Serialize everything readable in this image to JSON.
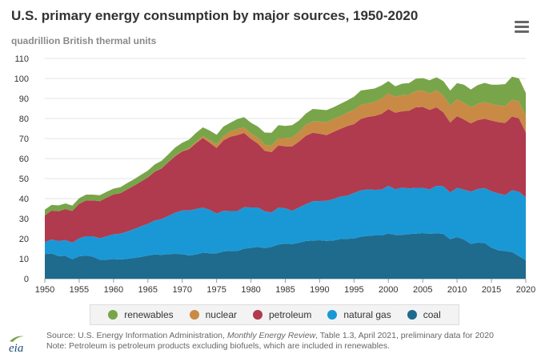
{
  "header": {
    "title": "U.S. primary energy consumption by major sources, 1950-2020",
    "subtitle": "quadrillion British thermal units"
  },
  "toolbar": {
    "menu_icon": "hamburger-menu-icon"
  },
  "legend": [
    {
      "label": "renewables",
      "color": "#78a54a"
    },
    {
      "label": "nuclear",
      "color": "#c98a45"
    },
    {
      "label": "petroleum",
      "color": "#b03a4e"
    },
    {
      "label": "natural gas",
      "color": "#1a98d5"
    },
    {
      "label": "coal",
      "color": "#1e6b8e"
    }
  ],
  "footer": {
    "source_prefix": "Source: U.S. Energy Information Administration, ",
    "source_italic": "Monthly Energy Review",
    "source_suffix": ", Table 1.3, April 2021, preliminary data for 2020",
    "note": "Note: Petroleum is petroleum products excluding biofuels, which are included in renewables.",
    "logo_text": "eia"
  },
  "chart_data": {
    "type": "area",
    "stacked": true,
    "title": "U.S. primary energy consumption by major sources, 1950-2020",
    "ylabel": "quadrillion British thermal units",
    "ylim": [
      0,
      110
    ],
    "yticks": [
      0,
      10,
      20,
      30,
      40,
      50,
      60,
      70,
      80,
      90,
      100,
      110
    ],
    "xticks": [
      1950,
      1955,
      1960,
      1965,
      1970,
      1975,
      1980,
      1985,
      1990,
      1995,
      2000,
      2005,
      2010,
      2015,
      2020
    ],
    "x": [
      1950,
      1951,
      1952,
      1953,
      1954,
      1955,
      1956,
      1957,
      1958,
      1959,
      1960,
      1961,
      1962,
      1963,
      1964,
      1965,
      1966,
      1967,
      1968,
      1969,
      1970,
      1971,
      1972,
      1973,
      1974,
      1975,
      1976,
      1977,
      1978,
      1979,
      1980,
      1981,
      1982,
      1983,
      1984,
      1985,
      1986,
      1987,
      1988,
      1989,
      1990,
      1991,
      1992,
      1993,
      1994,
      1995,
      1996,
      1997,
      1998,
      1999,
      2000,
      2001,
      2002,
      2003,
      2004,
      2005,
      2006,
      2007,
      2008,
      2009,
      2010,
      2011,
      2012,
      2013,
      2014,
      2015,
      2016,
      2017,
      2018,
      2019,
      2020
    ],
    "grid": true,
    "legend_position": "bottom",
    "series": [
      {
        "name": "coal",
        "color": "#1e6b8e",
        "values": [
          12.3,
          12.6,
          11.3,
          11.4,
          9.7,
          11.2,
          11.6,
          11.0,
          9.5,
          9.5,
          9.8,
          9.6,
          9.9,
          10.4,
          10.9,
          11.6,
          12.1,
          11.9,
          12.3,
          12.4,
          12.3,
          11.6,
          12.1,
          13.0,
          12.7,
          12.7,
          13.6,
          13.9,
          13.8,
          15.0,
          15.4,
          15.9,
          15.3,
          15.9,
          17.1,
          17.5,
          17.3,
          18.0,
          18.8,
          19.1,
          19.2,
          18.9,
          19.1,
          19.8,
          19.9,
          20.1,
          21.0,
          21.4,
          21.6,
          21.6,
          22.6,
          21.9,
          21.9,
          22.3,
          22.5,
          22.8,
          22.4,
          22.7,
          22.4,
          19.7,
          20.8,
          19.6,
          17.4,
          18.0,
          17.9,
          15.5,
          14.2,
          13.8,
          13.3,
          11.3,
          9.2
        ]
      },
      {
        "name": "natural gas",
        "color": "#1a98d5",
        "values": [
          6.0,
          7.0,
          7.5,
          7.9,
          8.3,
          9.0,
          9.6,
          10.2,
          10.7,
          11.7,
          12.4,
          12.9,
          13.7,
          14.4,
          15.3,
          15.8,
          17.0,
          17.9,
          19.1,
          20.6,
          21.8,
          22.5,
          22.7,
          22.5,
          21.7,
          19.9,
          20.3,
          19.9,
          20.0,
          20.7,
          20.2,
          19.7,
          18.4,
          17.2,
          18.4,
          17.7,
          16.6,
          17.6,
          18.4,
          19.6,
          19.6,
          20.0,
          20.7,
          21.2,
          21.6,
          22.7,
          23.1,
          23.2,
          22.8,
          22.9,
          23.8,
          22.8,
          23.6,
          22.8,
          22.9,
          22.6,
          22.2,
          23.7,
          23.8,
          23.4,
          24.6,
          24.9,
          26.1,
          26.8,
          27.4,
          28.2,
          28.4,
          28.0,
          30.9,
          32.1,
          31.5
        ]
      },
      {
        "name": "petroleum",
        "color": "#b03a4e",
        "values": [
          13.3,
          14.4,
          14.9,
          15.5,
          15.8,
          17.2,
          17.9,
          17.9,
          18.5,
          19.3,
          19.9,
          20.2,
          21.0,
          21.7,
          22.3,
          23.2,
          24.4,
          25.3,
          26.9,
          28.3,
          29.5,
          30.6,
          32.9,
          34.8,
          33.5,
          32.7,
          35.2,
          37.1,
          37.9,
          37.1,
          34.2,
          31.9,
          30.2,
          30.1,
          31.1,
          30.9,
          32.2,
          32.9,
          34.2,
          34.2,
          33.6,
          32.8,
          33.5,
          33.8,
          34.7,
          34.4,
          35.7,
          36.2,
          36.9,
          37.8,
          38.3,
          38.2,
          38.1,
          38.8,
          40.2,
          40.4,
          39.7,
          39.2,
          36.9,
          34.9,
          35.8,
          35.0,
          34.1,
          34.4,
          34.6,
          35.3,
          35.6,
          36.0,
          36.8,
          36.7,
          32.3
        ]
      },
      {
        "name": "nuclear",
        "color": "#c98a45",
        "values": [
          0.0,
          0.0,
          0.0,
          0.0,
          0.0,
          0.0,
          0.0,
          0.0,
          0.0,
          0.0,
          0.0,
          0.0,
          0.0,
          0.0,
          0.0,
          0.0,
          0.1,
          0.1,
          0.1,
          0.2,
          0.2,
          0.4,
          0.6,
          0.9,
          1.3,
          1.9,
          2.1,
          2.7,
          3.0,
          2.8,
          2.7,
          3.0,
          3.1,
          3.2,
          3.6,
          4.1,
          4.4,
          4.8,
          5.6,
          5.6,
          6.1,
          6.4,
          6.5,
          6.4,
          6.7,
          7.1,
          7.1,
          6.6,
          7.1,
          7.6,
          7.9,
          8.0,
          8.1,
          7.9,
          8.2,
          8.2,
          8.2,
          8.5,
          8.4,
          8.4,
          8.4,
          8.3,
          8.1,
          8.2,
          8.3,
          8.3,
          8.4,
          8.4,
          8.4,
          8.5,
          8.2
        ]
      },
      {
        "name": "renewables",
        "color": "#78a54a",
        "values": [
          2.9,
          2.9,
          2.9,
          2.8,
          2.7,
          2.8,
          2.9,
          2.9,
          3.0,
          2.9,
          2.9,
          3.0,
          3.2,
          3.2,
          3.4,
          3.4,
          3.5,
          3.7,
          3.8,
          4.1,
          4.1,
          4.4,
          4.5,
          4.4,
          4.8,
          4.7,
          4.8,
          4.3,
          5.0,
          5.1,
          5.4,
          5.5,
          6.0,
          6.5,
          6.5,
          6.1,
          6.2,
          5.7,
          5.5,
          6.3,
          6.0,
          6.1,
          5.8,
          6.1,
          6.1,
          6.6,
          7.1,
          7.1,
          6.6,
          6.6,
          6.1,
          5.2,
          5.7,
          5.9,
          6.1,
          6.2,
          6.6,
          6.5,
          7.2,
          7.6,
          8.1,
          9.1,
          8.8,
          9.3,
          9.6,
          9.6,
          10.3,
          11.0,
          11.5,
          11.5,
          11.6
        ]
      }
    ]
  }
}
